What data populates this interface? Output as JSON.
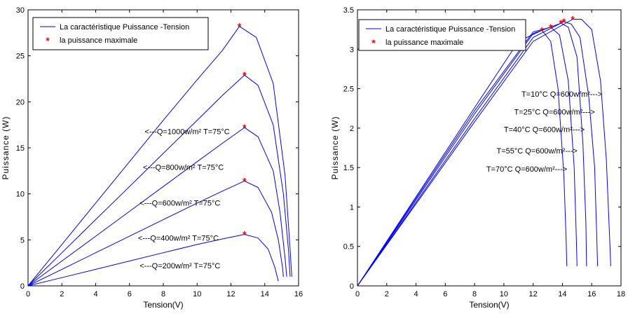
{
  "chart_data": [
    {
      "type": "line",
      "xlabel": "Tension(V)",
      "ylabel": "Puissance (W)",
      "xlim": [
        0,
        16
      ],
      "ylim": [
        0,
        30
      ],
      "xticks": [
        0,
        2,
        4,
        6,
        8,
        10,
        12,
        14,
        16
      ],
      "yticks": [
        0,
        5,
        10,
        15,
        20,
        25,
        30
      ],
      "grid": false,
      "legend": {
        "position": "top-left",
        "entries": [
          {
            "label": "La caractéristique Puissance -Tension",
            "color": "#0000ff",
            "marker": "line"
          },
          {
            "label": "la puissance maximale",
            "color": "#ff0000",
            "marker": "*"
          }
        ]
      },
      "series": [
        {
          "points": [
            [
              0,
              0
            ],
            [
              2,
              4.5
            ],
            [
              4,
              9.0
            ],
            [
              6,
              13.5
            ],
            [
              8,
              18.0
            ],
            [
              10,
              22.4
            ],
            [
              11.5,
              25.6
            ],
            [
              12.5,
              28.2
            ],
            [
              13.5,
              27.0
            ],
            [
              14.5,
              22.0
            ],
            [
              15.2,
              12.0
            ],
            [
              15.5,
              4.0
            ],
            [
              15.6,
              1.0
            ]
          ],
          "mpp": [
            12.5,
            28.2
          ]
        },
        {
          "points": [
            [
              0,
              0
            ],
            [
              2,
              3.6
            ],
            [
              4,
              7.2
            ],
            [
              6,
              10.8
            ],
            [
              8,
              14.4
            ],
            [
              10,
              18.0
            ],
            [
              11.5,
              20.7
            ],
            [
              12.8,
              22.9
            ],
            [
              13.6,
              21.8
            ],
            [
              14.5,
              17.5
            ],
            [
              15.1,
              10.0
            ],
            [
              15.4,
              4.0
            ],
            [
              15.5,
              1.0
            ]
          ],
          "mpp": [
            12.8,
            22.9
          ]
        },
        {
          "points": [
            [
              0,
              0
            ],
            [
              2,
              2.7
            ],
            [
              4,
              5.4
            ],
            [
              6,
              8.1
            ],
            [
              8,
              10.8
            ],
            [
              10,
              13.5
            ],
            [
              11.5,
              15.5
            ],
            [
              12.8,
              17.2
            ],
            [
              13.6,
              16.2
            ],
            [
              14.5,
              12.5
            ],
            [
              14.9,
              8.0
            ],
            [
              15.2,
              3.0
            ],
            [
              15.3,
              1.0
            ]
          ],
          "mpp": [
            12.8,
            17.2
          ]
        },
        {
          "points": [
            [
              0,
              0
            ],
            [
              2,
              1.8
            ],
            [
              4,
              3.6
            ],
            [
              6,
              5.4
            ],
            [
              8,
              7.2
            ],
            [
              10,
              9.0
            ],
            [
              11.5,
              10.3
            ],
            [
              12.8,
              11.4
            ],
            [
              13.6,
              10.7
            ],
            [
              14.4,
              8.0
            ],
            [
              14.8,
              5.0
            ],
            [
              15.05,
              2.0
            ],
            [
              15.1,
              1.0
            ]
          ],
          "mpp": [
            12.8,
            11.4
          ]
        },
        {
          "points": [
            [
              0,
              0
            ],
            [
              2,
              0.9
            ],
            [
              4,
              1.8
            ],
            [
              6,
              2.7
            ],
            [
              8,
              3.6
            ],
            [
              10,
              4.5
            ],
            [
              11.5,
              5.1
            ],
            [
              12.8,
              5.6
            ],
            [
              13.6,
              5.2
            ],
            [
              14.2,
              4.0
            ],
            [
              14.6,
              2.0
            ],
            [
              14.8,
              0.5
            ]
          ],
          "mpp": [
            12.8,
            5.6
          ]
        }
      ],
      "annotations": [
        {
          "text": "<---Q=1000w/m² T=75°C",
          "x": 6.9,
          "y": 16.5
        },
        {
          "text": "<---Q=800w/m² T=75°C",
          "x": 6.8,
          "y": 12.6
        },
        {
          "text": "<---Q=600w/m² T=75°C",
          "x": 6.6,
          "y": 8.7
        },
        {
          "text": "<---Q=400w/m² T=75°C",
          "x": 6.5,
          "y": 4.9
        },
        {
          "text": "<---Q=200w/m² T=75°C",
          "x": 6.6,
          "y": 1.9
        }
      ]
    },
    {
      "type": "line",
      "xlabel": "Tension(V)",
      "ylabel": "Puissance (W)",
      "xlim": [
        0,
        18
      ],
      "ylim": [
        0,
        3.5
      ],
      "xticks": [
        0,
        2,
        4,
        6,
        8,
        10,
        12,
        14,
        16,
        18
      ],
      "yticks": [
        0,
        0.5,
        1,
        1.5,
        2,
        2.5,
        3,
        3.5
      ],
      "grid": false,
      "legend": {
        "position": "top-left",
        "entries": [
          {
            "label": "La caractéristique Puissance -Tension",
            "color": "#0000ff",
            "marker": "line"
          },
          {
            "label": "la puissance maximale",
            "color": "#ff0000",
            "marker": "*"
          }
        ]
      },
      "series": [
        {
          "points": [
            [
              0,
              0
            ],
            [
              4,
              1.04
            ],
            [
              8,
              2.08
            ],
            [
              12,
              3.1
            ],
            [
              14.7,
              3.38
            ],
            [
              15.3,
              3.38
            ],
            [
              16.0,
              3.25
            ],
            [
              16.6,
              2.6
            ],
            [
              17.0,
              1.6
            ],
            [
              17.25,
              0.5
            ],
            [
              17.3,
              0.25
            ]
          ],
          "mpp": [
            14.7,
            3.38
          ]
        },
        {
          "points": [
            [
              0,
              0
            ],
            [
              4,
              1.06
            ],
            [
              8,
              2.12
            ],
            [
              12,
              3.15
            ],
            [
              14.1,
              3.35
            ],
            [
              14.6,
              3.32
            ],
            [
              15.2,
              3.15
            ],
            [
              15.8,
              2.4
            ],
            [
              16.2,
              1.5
            ],
            [
              16.35,
              0.6
            ],
            [
              16.4,
              0.25
            ]
          ],
          "mpp": [
            14.1,
            3.35
          ]
        },
        {
          "points": [
            [
              0,
              0
            ],
            [
              4,
              1.09
            ],
            [
              8,
              2.18
            ],
            [
              12,
              3.2
            ],
            [
              13.9,
              3.33
            ],
            [
              14.4,
              3.28
            ],
            [
              15.0,
              2.9
            ],
            [
              15.4,
              1.8
            ],
            [
              15.6,
              0.8
            ],
            [
              15.65,
              0.25
            ]
          ],
          "mpp": [
            13.9,
            3.33
          ]
        },
        {
          "points": [
            [
              0,
              0
            ],
            [
              4,
              1.11
            ],
            [
              8,
              2.22
            ],
            [
              12,
              3.22
            ],
            [
              13.2,
              3.28
            ],
            [
              13.8,
              3.18
            ],
            [
              14.4,
              2.6
            ],
            [
              14.8,
              1.5
            ],
            [
              14.95,
              0.6
            ],
            [
              15.0,
              0.25
            ]
          ],
          "mpp": [
            13.2,
            3.28
          ]
        },
        {
          "points": [
            [
              0,
              0
            ],
            [
              4,
              1.13
            ],
            [
              8,
              2.26
            ],
            [
              11,
              3.1
            ],
            [
              12.6,
              3.24
            ],
            [
              13.2,
              3.1
            ],
            [
              13.7,
              2.5
            ],
            [
              14.1,
              1.4
            ],
            [
              14.25,
              0.6
            ],
            [
              14.3,
              0.25
            ]
          ],
          "mpp": [
            12.6,
            3.24
          ]
        }
      ],
      "annotations": [
        {
          "text": "T=10°C Q=600w/m²--->",
          "x": 11.2,
          "y": 2.4
        },
        {
          "text": "T=25°C Q=600w/m²--->",
          "x": 10.7,
          "y": 2.17
        },
        {
          "text": "T=40°C Q=600w/m²--->",
          "x": 10.0,
          "y": 1.95
        },
        {
          "text": "T=55°C Q=600w/m²--->",
          "x": 9.5,
          "y": 1.68
        },
        {
          "text": "T=70°C Q=600w/m²--->",
          "x": 8.8,
          "y": 1.45
        }
      ]
    }
  ]
}
